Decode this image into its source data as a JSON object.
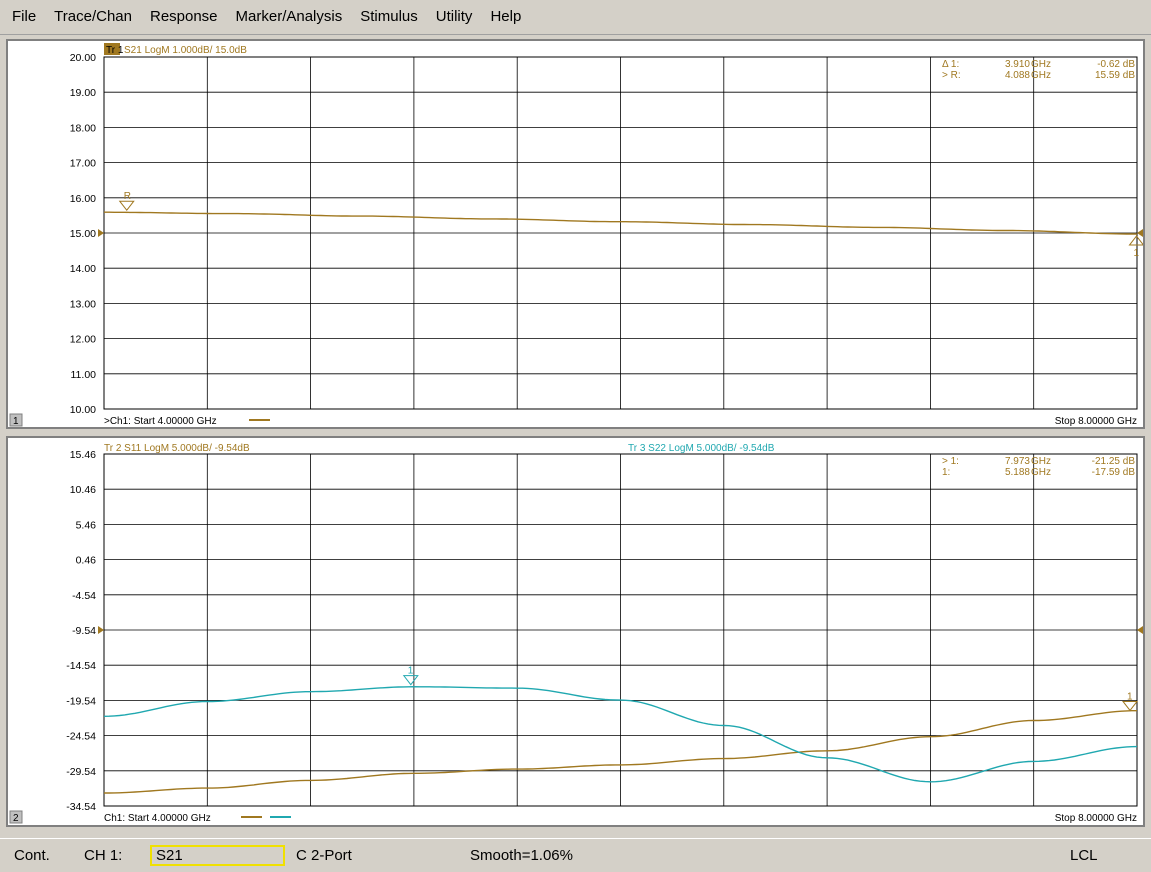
{
  "menu": [
    "File",
    "Trace/Chan",
    "Response",
    "Marker/Analysis",
    "Stimulus",
    "Utility",
    "Help"
  ],
  "colors": {
    "trace_brown": "#a07820",
    "trace_cyan": "#20a8b0",
    "marker_brown": "#a07820"
  },
  "window1": {
    "number": "1",
    "trace_tag": "Tr 1",
    "trace_label": "S21 LogM 1.000dB/ 15.0dB",
    "y_ticks": [
      "20.00",
      "19.00",
      "18.00",
      "17.00",
      "16.00",
      "15.00",
      "14.00",
      "13.00",
      "12.00",
      "11.00",
      "10.00"
    ],
    "ref_level": "15.00",
    "start_label": ">Ch1: Start  4.00000 GHz",
    "stop_label": "Stop  8.00000 GHz",
    "markers_readout": [
      {
        "name": "Δ 1:",
        "freq": "3.910",
        "unit": "GHz",
        "value": "-0.62 dB"
      },
      {
        "name": "> R:",
        "freq": "4.088",
        "unit": "GHz",
        "value": "15.59 dB"
      }
    ],
    "marker_labels": {
      "ref": "R",
      "m1": "1"
    }
  },
  "window2": {
    "number": "2",
    "trace2_label": "Tr 2  S11 LogM 5.000dB/ -9.54dB",
    "trace3_label": "Tr 3  S22 LogM 5.000dB/ -9.54dB",
    "y_ticks": [
      "15.46",
      "10.46",
      "5.46",
      "0.46",
      "-4.54",
      "-9.54",
      "-14.54",
      "-19.54",
      "-24.54",
      "-29.54",
      "-34.54"
    ],
    "ref_level": "-9.54",
    "start_label": "Ch1: Start  4.00000 GHz",
    "stop_label": "Stop  8.00000 GHz",
    "markers_readout": [
      {
        "name": "> 1:",
        "freq": "7.973",
        "unit": "GHz",
        "value": "-21.25 dB"
      },
      {
        "name": "1:",
        "freq": "5.188",
        "unit": "GHz",
        "value": "-17.59 dB"
      }
    ],
    "marker_labels": {
      "m1": "1"
    }
  },
  "chart_data": [
    {
      "type": "line",
      "title": "S21 LogM 1.000dB/ 15.0dB",
      "x_range_ghz": [
        4.0,
        8.0
      ],
      "ylim": [
        10,
        20
      ],
      "series": [
        {
          "name": "S21",
          "x": [
            4.0,
            4.5,
            5.0,
            5.5,
            6.0,
            6.5,
            7.0,
            7.5,
            8.0
          ],
          "values": [
            15.59,
            15.55,
            15.48,
            15.4,
            15.32,
            15.24,
            15.16,
            15.07,
            14.97
          ]
        }
      ]
    },
    {
      "type": "line",
      "title": "S11 / S22 LogM 5.000dB/ -9.54dB",
      "x_range_ghz": [
        4.0,
        8.0
      ],
      "ylim": [
        -34.54,
        15.46
      ],
      "series": [
        {
          "name": "S11",
          "x": [
            4.0,
            4.4,
            4.8,
            5.2,
            5.6,
            6.0,
            6.4,
            6.8,
            7.2,
            7.6,
            8.0
          ],
          "values": [
            -32.7,
            -32.0,
            -30.9,
            -29.9,
            -29.3,
            -28.7,
            -27.8,
            -26.7,
            -24.7,
            -22.4,
            -21.0
          ]
        },
        {
          "name": "S22",
          "x": [
            4.0,
            4.4,
            4.8,
            5.2,
            5.6,
            6.0,
            6.4,
            6.8,
            7.2,
            7.6,
            8.0
          ],
          "values": [
            -21.8,
            -19.7,
            -18.3,
            -17.6,
            -17.8,
            -19.5,
            -23.1,
            -27.7,
            -31.1,
            -28.2,
            -26.1
          ]
        }
      ]
    }
  ],
  "status": {
    "mode": "Cont.",
    "channel": "CH 1:",
    "param": "S21",
    "cal": "C  2-Port",
    "smooth": "Smooth=1.06%",
    "lcl": "LCL"
  }
}
